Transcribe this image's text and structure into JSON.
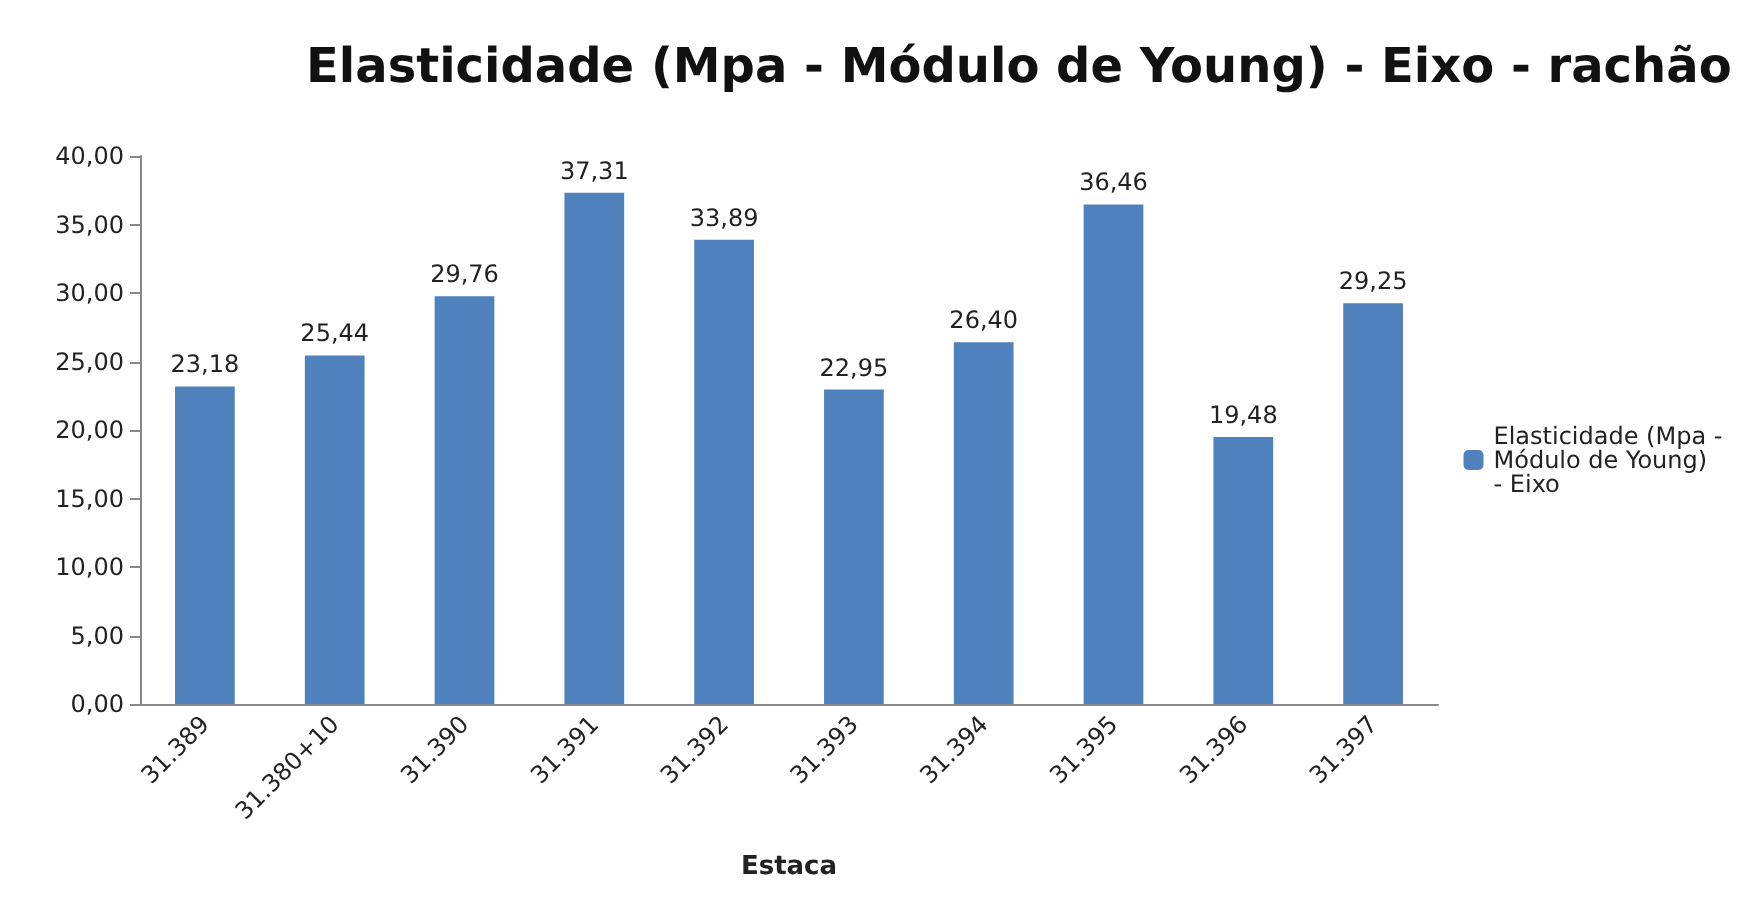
{
  "chart_data": {
    "type": "bar",
    "title": "Elasticidade (Mpa - Módulo de Young) - Eixo - rachão",
    "xlabel": "Estaca",
    "categories": [
      "31.389",
      "31.380+10",
      "31.390",
      "31.391",
      "31.392",
      "31.393",
      "31.394",
      "31.395",
      "31.396",
      "31.397"
    ],
    "series": [
      {
        "name": "Elasticidade (Mpa - Módulo de Young) - Eixo",
        "color": "#4f81bd",
        "values": [
          23.18,
          25.44,
          29.76,
          37.31,
          33.89,
          22.95,
          26.4,
          36.46,
          19.48,
          29.25
        ],
        "value_labels": [
          "23,18",
          "25,44",
          "29,76",
          "37,31",
          "33,89",
          "22,95",
          "26,40",
          "36,46",
          "19,48",
          "29,25"
        ]
      }
    ],
    "ylim": [
      0,
      40
    ],
    "yticks": [
      {
        "value": 0,
        "label": "0,00"
      },
      {
        "value": 5,
        "label": "5,00"
      },
      {
        "value": 10,
        "label": "10,00"
      },
      {
        "value": 15,
        "label": "15,00"
      },
      {
        "value": 20,
        "label": "20,00"
      },
      {
        "value": 25,
        "label": "25,00"
      },
      {
        "value": 30,
        "label": "30,00"
      },
      {
        "value": 35,
        "label": "35,00"
      },
      {
        "value": 40,
        "label": "40,00"
      }
    ],
    "legend": "right"
  }
}
